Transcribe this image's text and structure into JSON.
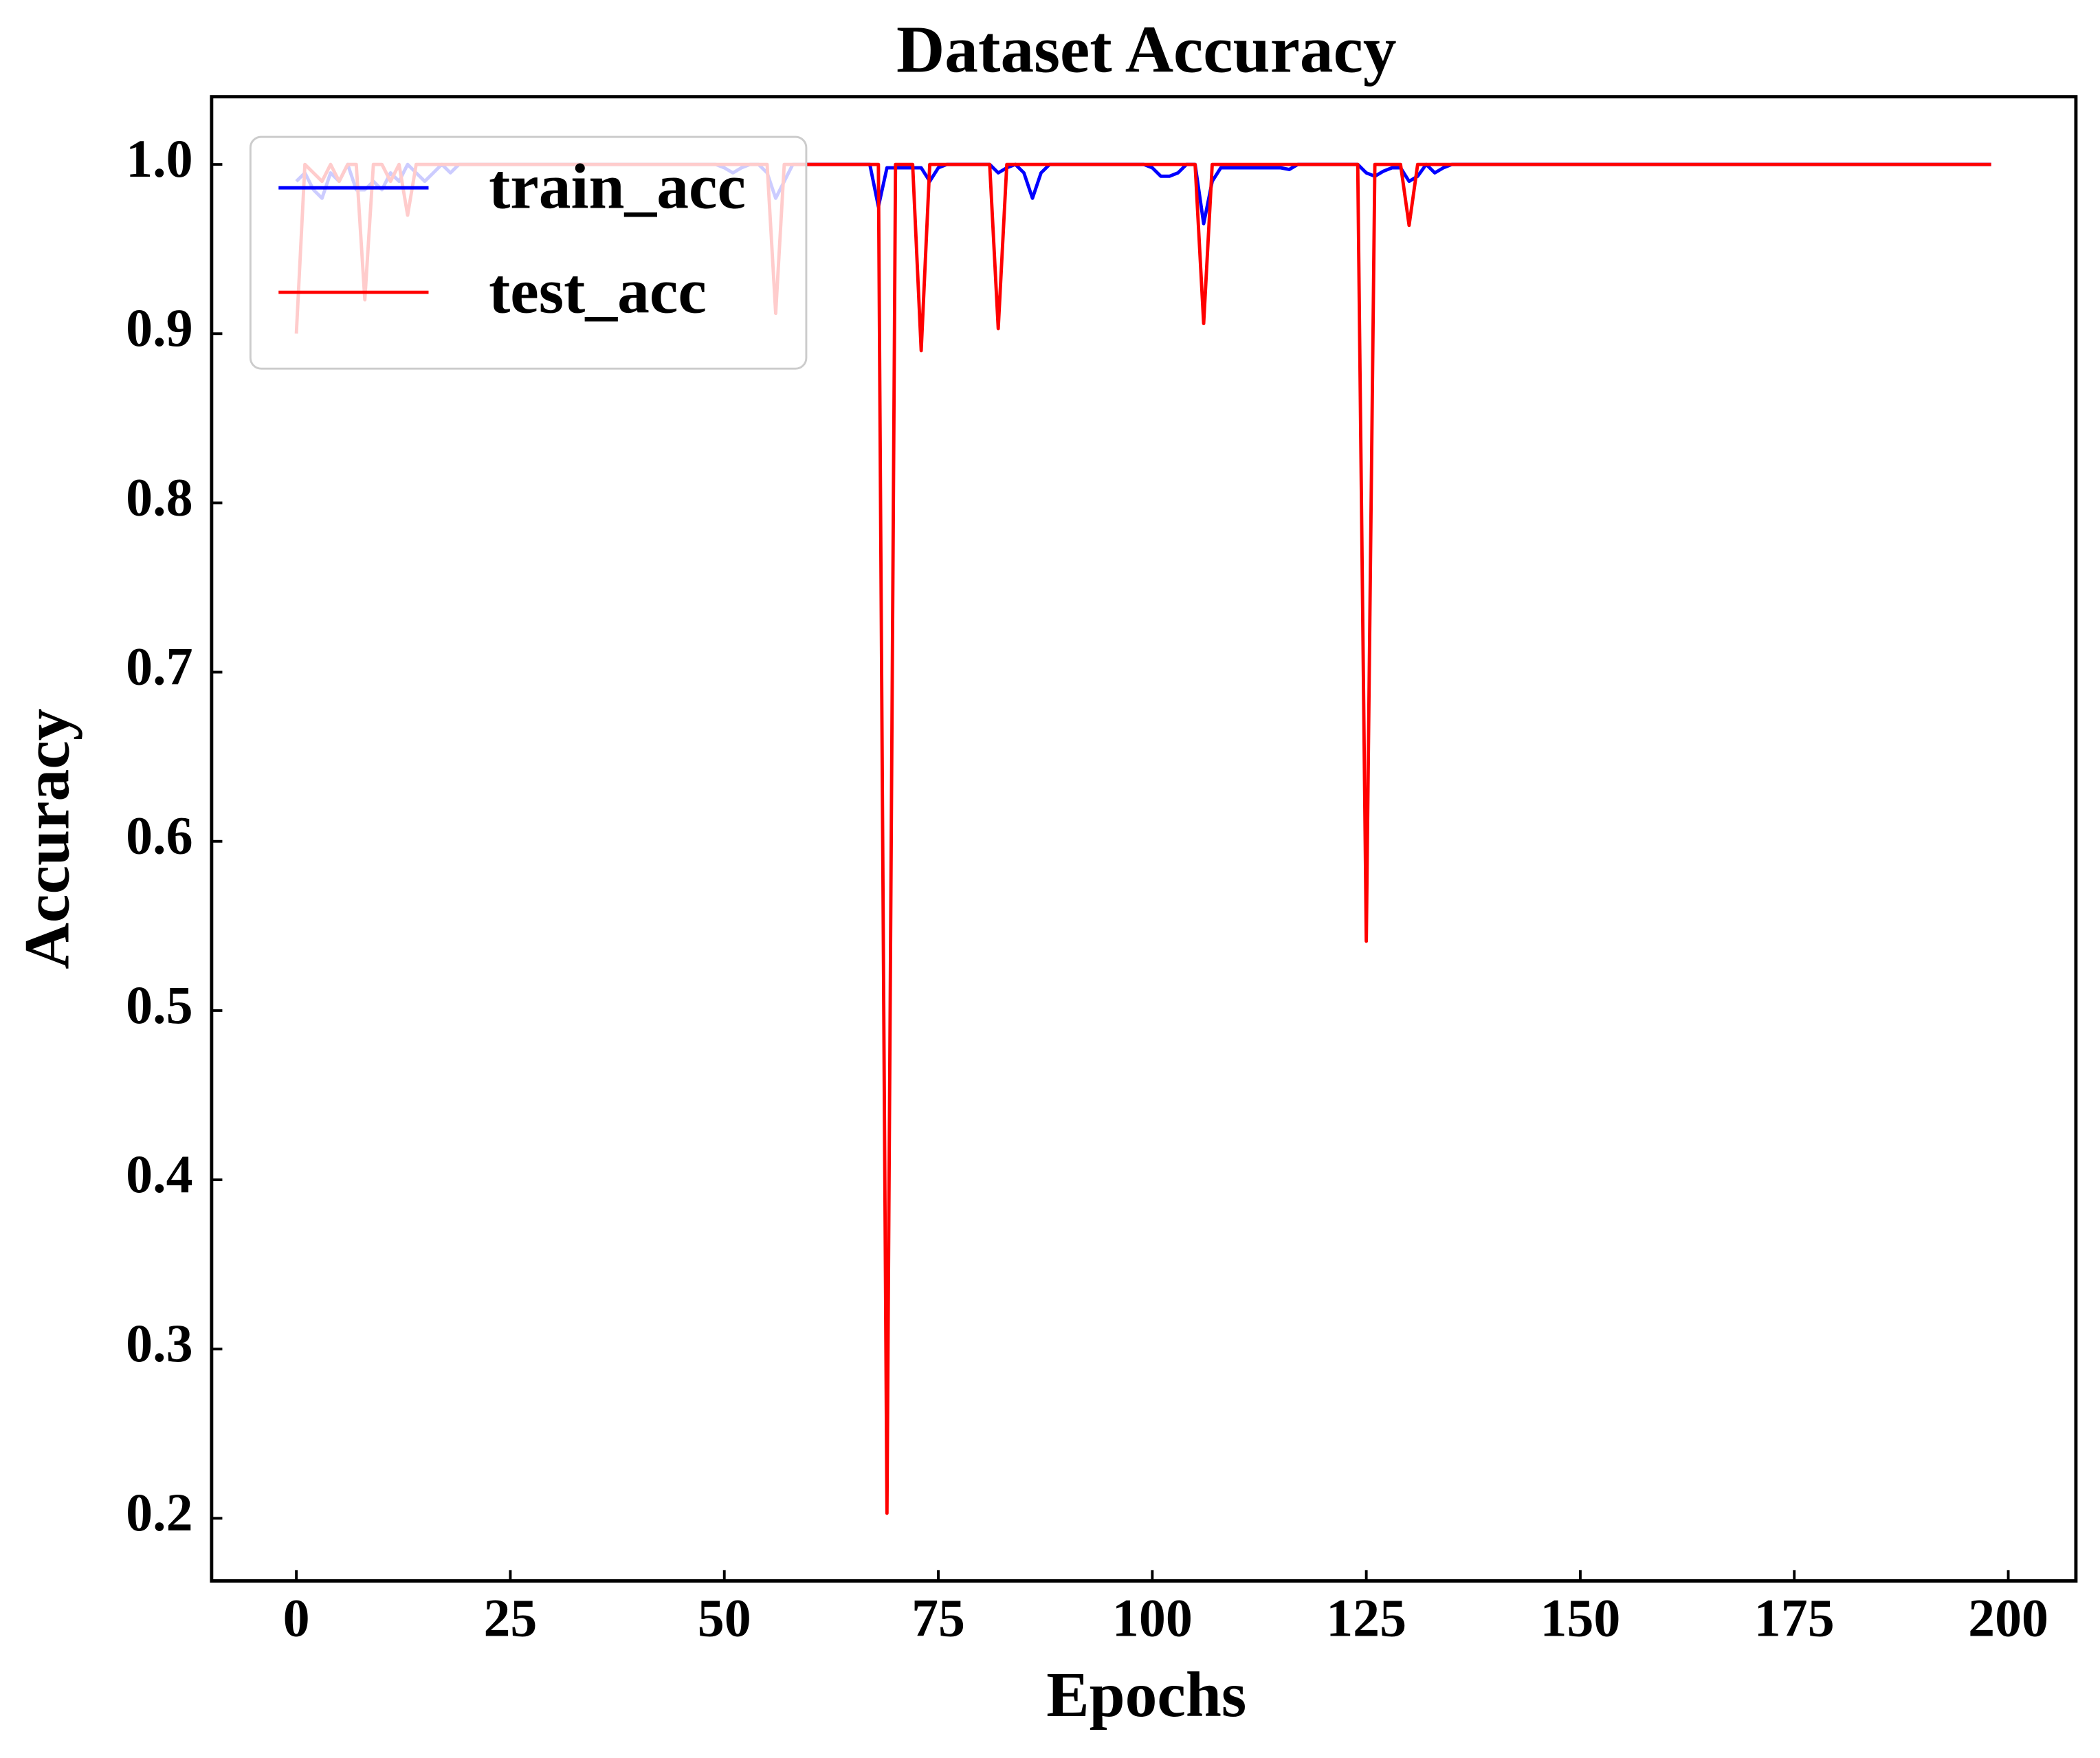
{
  "chart_data": {
    "type": "line",
    "title": "Dataset Accuracy",
    "x_label": "Epochs",
    "y_label": "Accuracy",
    "x": [
      0,
      1,
      2,
      3,
      4,
      5,
      6,
      7,
      8,
      9,
      10,
      11,
      12,
      13,
      14,
      15,
      16,
      17,
      18,
      19,
      20,
      21,
      22,
      23,
      24,
      25,
      26,
      27,
      28,
      29,
      30,
      31,
      32,
      33,
      34,
      35,
      36,
      37,
      38,
      39,
      40,
      41,
      42,
      43,
      44,
      45,
      46,
      47,
      48,
      49,
      50,
      51,
      52,
      53,
      54,
      55,
      56,
      57,
      58,
      59,
      60,
      61,
      62,
      63,
      64,
      65,
      66,
      67,
      68,
      69,
      70,
      71,
      72,
      73,
      74,
      75,
      76,
      77,
      78,
      79,
      80,
      81,
      82,
      83,
      84,
      85,
      86,
      87,
      88,
      89,
      90,
      91,
      92,
      93,
      94,
      95,
      96,
      97,
      98,
      99,
      100,
      101,
      102,
      103,
      104,
      105,
      106,
      107,
      108,
      109,
      110,
      111,
      112,
      113,
      114,
      115,
      116,
      117,
      118,
      119,
      120,
      121,
      122,
      123,
      124,
      125,
      126,
      127,
      128,
      129,
      130,
      131,
      132,
      133,
      134,
      135,
      136,
      137,
      138,
      139,
      140,
      141,
      142,
      143,
      144,
      145,
      146,
      147,
      148,
      149,
      150,
      151,
      152,
      153,
      154,
      155,
      156,
      157,
      158,
      159,
      160,
      161,
      162,
      163,
      164,
      165,
      166,
      167,
      168,
      169,
      170,
      171,
      172,
      173,
      174,
      175,
      176,
      177,
      178,
      179,
      180,
      181,
      182,
      183,
      184,
      185,
      186,
      187,
      188,
      189,
      190,
      191,
      192,
      193,
      194,
      195,
      196,
      197,
      198
    ],
    "series": [
      {
        "name": "train_acc",
        "color": "#0000ff",
        "values": [
          0.99,
          0.995,
          0.985,
          0.98,
          0.995,
          0.99,
          1,
          0.985,
          0.985,
          0.99,
          0.985,
          0.995,
          0.99,
          1,
          0.995,
          0.99,
          0.995,
          1,
          0.995,
          1,
          1,
          1,
          1,
          1,
          1,
          1,
          1,
          1,
          1,
          1,
          1,
          1,
          1,
          1,
          1,
          1,
          1,
          1,
          1,
          1,
          1,
          1,
          1,
          1,
          1,
          1,
          1,
          1,
          1,
          1,
          0.998,
          0.995,
          0.998,
          1,
          1,
          0.995,
          0.98,
          0.99,
          1,
          1,
          1,
          1,
          1,
          1,
          1,
          1,
          1,
          1,
          0.975,
          0.998,
          0.998,
          0.998,
          0.998,
          0.998,
          0.99,
          0.998,
          1,
          1,
          1,
          1,
          1,
          1,
          0.995,
          0.998,
          1,
          0.995,
          0.98,
          0.995,
          1,
          1,
          1,
          1,
          1,
          1,
          1,
          1,
          1,
          1,
          1,
          1,
          0.998,
          0.993,
          0.993,
          0.995,
          1,
          1,
          0.965,
          0.99,
          0.998,
          0.998,
          0.998,
          0.998,
          0.998,
          0.998,
          0.998,
          0.998,
          0.997,
          1,
          1,
          1,
          1,
          1,
          1,
          1,
          1,
          0.995,
          0.993,
          0.996,
          0.998,
          0.998,
          0.99,
          0.993,
          1,
          0.995,
          0.998,
          1,
          1,
          1,
          1,
          1,
          1,
          1,
          1,
          1,
          1,
          1,
          1,
          1,
          1,
          1,
          1,
          1,
          1,
          1,
          1,
          1,
          1,
          1,
          1,
          1,
          1,
          1,
          1,
          1,
          1,
          1,
          1,
          1,
          1,
          1,
          1,
          1,
          1,
          1,
          1,
          1,
          1,
          1,
          1,
          1,
          1,
          1,
          1,
          1,
          1,
          1,
          1,
          1,
          1,
          1,
          1,
          1,
          1,
          1,
          1,
          1,
          1,
          1,
          1
        ]
      },
      {
        "name": "test_acc",
        "color": "#ff0000",
        "values": [
          0.9,
          1,
          0.995,
          0.99,
          1,
          0.99,
          1,
          1,
          0.92,
          1,
          1,
          0.99,
          1,
          0.97,
          1,
          1,
          1,
          1,
          1,
          1,
          1,
          1,
          1,
          1,
          1,
          1,
          1,
          1,
          1,
          1,
          1,
          1,
          1,
          1,
          1,
          1,
          1,
          1,
          1,
          1,
          1,
          1,
          1,
          1,
          1,
          1,
          1,
          1,
          1,
          1,
          1,
          1,
          1,
          1,
          1,
          1,
          0.912,
          1,
          1,
          1,
          1,
          1,
          1,
          1,
          1,
          1,
          1,
          1,
          1,
          0.203,
          1,
          1,
          1,
          0.89,
          1,
          1,
          1,
          1,
          1,
          1,
          1,
          1,
          0.903,
          1,
          1,
          1,
          1,
          1,
          1,
          1,
          1,
          1,
          1,
          1,
          1,
          1,
          1,
          1,
          1,
          1,
          1,
          1,
          1,
          1,
          1,
          1,
          0.906,
          1,
          1,
          1,
          1,
          1,
          1,
          1,
          1,
          1,
          1,
          1,
          1,
          1,
          1,
          1,
          1,
          1,
          1,
          0.541,
          1,
          1,
          1,
          1,
          0.964,
          1,
          1,
          1,
          1,
          1,
          1,
          1,
          1,
          1,
          1,
          1,
          1,
          1,
          1,
          1,
          1,
          1,
          1,
          1,
          1,
          1,
          1,
          1,
          1,
          1,
          1,
          1,
          1,
          1,
          1,
          1,
          1,
          1,
          1,
          1,
          1,
          1,
          1,
          1,
          1,
          1,
          1,
          1,
          1,
          1,
          1,
          1,
          1,
          1,
          1,
          1,
          1,
          1,
          1,
          1,
          1,
          1,
          1,
          1,
          1,
          1,
          1,
          1,
          1,
          1,
          1,
          1,
          1
        ]
      }
    ],
    "xlim": [
      -9.9,
      207.9
    ],
    "xticks": [
      0,
      25,
      50,
      75,
      100,
      125,
      150,
      175,
      200
    ],
    "ylim": [
      0.163,
      1.04
    ],
    "yticks": [
      {
        "value": 0.2,
        "label": "0.2"
      },
      {
        "value": 0.3,
        "label": "0.3"
      },
      {
        "value": 0.4,
        "label": "0.4"
      },
      {
        "value": 0.5,
        "label": "0.5"
      },
      {
        "value": 0.6,
        "label": "0.6"
      },
      {
        "value": 0.7,
        "label": "0.7"
      },
      {
        "value": 0.8,
        "label": "0.8"
      },
      {
        "value": 0.9,
        "label": "0.9"
      },
      {
        "value": 1.0,
        "label": "1.0"
      }
    ],
    "legend": "upper left",
    "grid": false
  }
}
